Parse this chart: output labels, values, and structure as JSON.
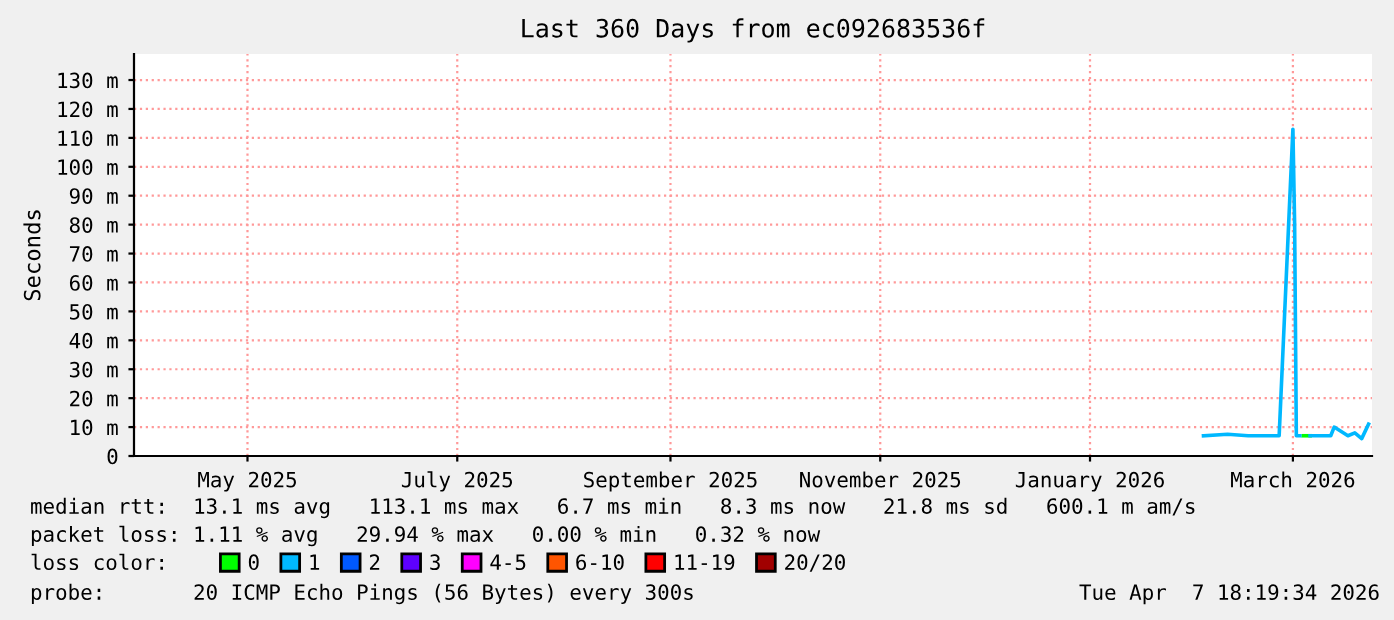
{
  "chart_data": {
    "type": "line",
    "title": "Last 360 Days from ec092683536f",
    "ylabel": "Seconds",
    "xlim": [
      "2025-04-13",
      "2026-04-08"
    ],
    "xticks": [
      {
        "value": "2025-05-16",
        "label": "May 2025"
      },
      {
        "value": "2025-07-16",
        "label": "July 2025"
      },
      {
        "value": "2025-09-16",
        "label": "September 2025"
      },
      {
        "value": "2025-11-16",
        "label": "November 2025"
      },
      {
        "value": "2026-01-16",
        "label": "January 2026"
      },
      {
        "value": "2026-03-16",
        "label": "March 2026"
      }
    ],
    "ylim": [
      0,
      139
    ],
    "yticks": [
      0,
      {
        "value": 10,
        "label": "10 m"
      },
      {
        "value": 20,
        "label": "20 m"
      },
      {
        "value": 30,
        "label": "30 m"
      },
      {
        "value": 40,
        "label": "40 m"
      },
      {
        "value": 50,
        "label": "50 m"
      },
      {
        "value": 60,
        "label": "60 m"
      },
      {
        "value": 70,
        "label": "70 m"
      },
      {
        "value": 80,
        "label": "80 m"
      },
      {
        "value": 90,
        "label": "90 m"
      },
      {
        "value": 100,
        "label": "100 m"
      },
      {
        "value": 110,
        "label": "110 m"
      },
      {
        "value": 120,
        "label": "120 m"
      },
      {
        "value": 130,
        "label": "130 m"
      }
    ],
    "grid": true,
    "legend": "bottom",
    "legend_title": "loss color:",
    "series": [
      {
        "name": "0",
        "color": "#00ff00",
        "x": [
          "2026-03-19",
          "2026-03-21"
        ],
        "values": [
          7,
          7
        ]
      },
      {
        "name": "1",
        "color": "#00b8ff",
        "x": [
          "2026-02-18",
          "2026-02-25",
          "2026-03-03",
          "2026-03-12",
          "2026-03-16",
          "2026-03-16T12:00",
          "2026-03-17",
          "2026-03-18",
          "2026-03-19",
          "2026-03-21",
          "2026-03-27",
          "2026-03-28",
          "2026-04-01",
          "2026-04-03",
          "2026-04-05",
          "2026-04-07"
        ],
        "values": [
          7,
          7.5,
          7,
          7,
          113,
          80,
          7,
          7,
          null,
          7,
          7,
          10,
          7,
          8,
          6,
          11
        ]
      },
      {
        "name": "2",
        "color": "#0059ff"
      },
      {
        "name": "3",
        "color": "#5e00ff"
      },
      {
        "name": "4-5",
        "color": "#ff00ff"
      },
      {
        "name": "6-10",
        "color": "#ff5500"
      },
      {
        "name": "11-19",
        "color": "#ff0000"
      },
      {
        "name": "20/20",
        "color": "#a10000"
      }
    ],
    "annotations": [
      "median rtt:  13.1 ms avg   113.1 ms max   6.7 ms min   8.3 ms now   21.8 ms sd   600.1 m am/s",
      "packet loss: 1.11 % avg   29.94 % max   0.00 % min   0.32 % now",
      "probe:       20 ICMP Echo Pings (56 Bytes) every 300s",
      "Tue Apr  7 18:19:34 2026"
    ]
  }
}
